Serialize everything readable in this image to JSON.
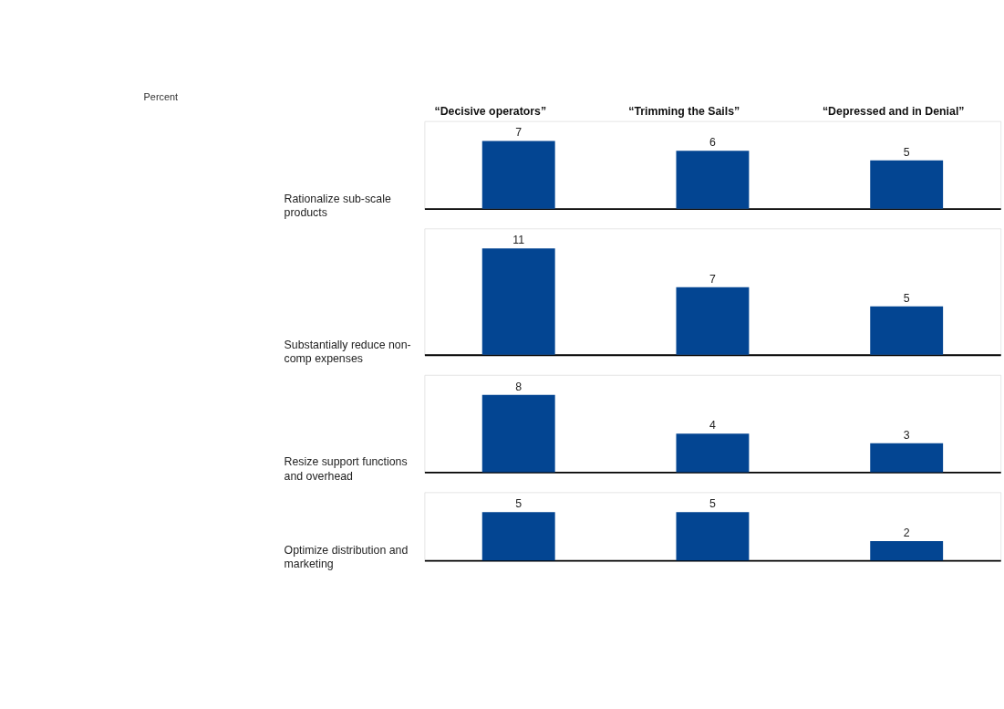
{
  "chart_data": [
    {
      "type": "bar",
      "annotations": [
        "Percent"
      ],
      "ylabel": "Rationalize sub-scale products",
      "categories": [
        "“Decisive operators”",
        "“Trimming the Sails”",
        "“Depressed and in Denial”"
      ],
      "series": [
        {
          "color": "#034592",
          "values": [
            7,
            6,
            5
          ]
        }
      ],
      "data_labels": true
    },
    {
      "type": "bar",
      "ylabel": "Substantially reduce non-comp expenses",
      "categories": [
        null,
        null,
        null
      ],
      "series": [
        {
          "color": "#034592",
          "values": [
            11,
            7,
            5
          ]
        }
      ],
      "data_labels": true
    },
    {
      "type": "bar",
      "ylabel": "Resize support functions and overhead",
      "categories": [
        null,
        null,
        null
      ],
      "series": [
        {
          "color": "#034592",
          "values": [
            8,
            4,
            3
          ]
        }
      ],
      "data_labels": true
    },
    {
      "type": "bar",
      "ylabel": "Optimize distribution and marketing",
      "categories": [
        null,
        null,
        null
      ],
      "series": [
        {
          "color": "#034592",
          "values": [
            5,
            5,
            2
          ]
        }
      ],
      "data_labels": true
    }
  ]
}
